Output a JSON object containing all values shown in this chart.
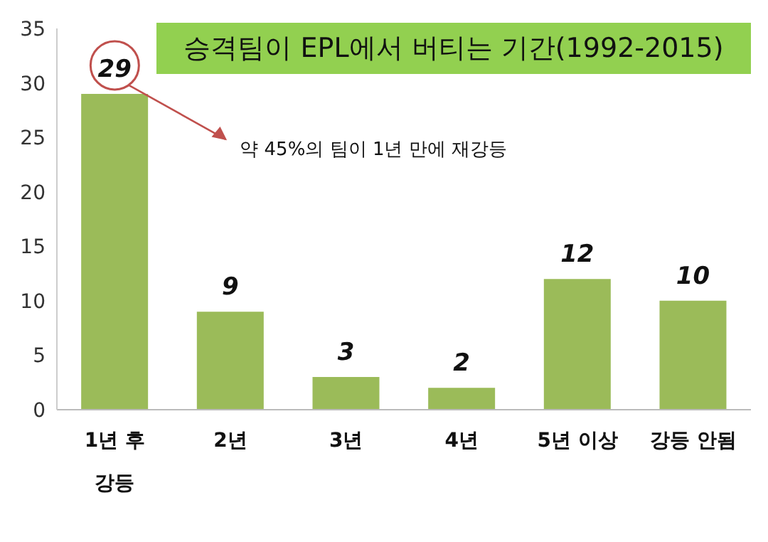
{
  "chart_data": {
    "type": "bar",
    "title": "승격팀이 EPL에서 버티는 기간(1992-2015)",
    "annotations": [
      "약 45%의 팀이 1년 만에 재강등"
    ],
    "categories": [
      "1년 후 강등",
      "2년",
      "3년",
      "4년",
      "5년 이상",
      "강등 안됨"
    ],
    "values": [
      29,
      9,
      3,
      2,
      12,
      10
    ],
    "color": "#9bbb59",
    "ylim": [
      0,
      35
    ],
    "yticks": [
      0,
      5,
      10,
      15,
      20,
      25,
      30,
      35
    ],
    "grid": false,
    "legend": false,
    "data_labels": true
  }
}
